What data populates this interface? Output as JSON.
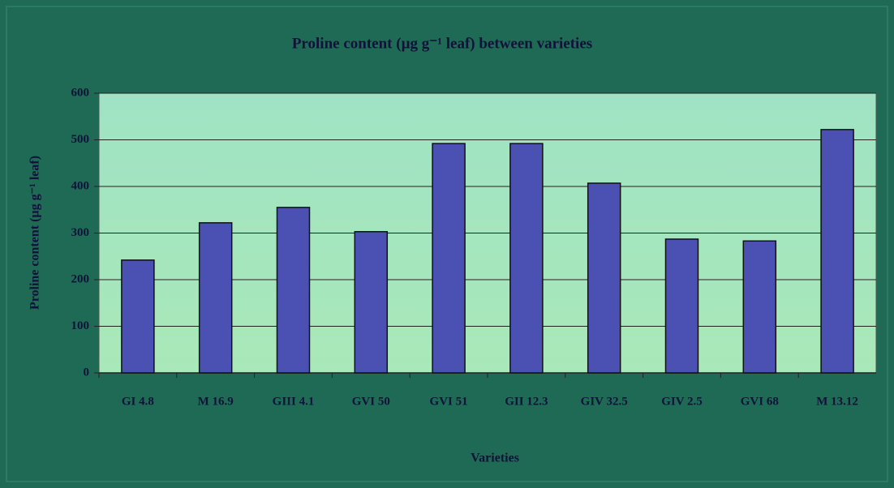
{
  "chart_data": {
    "type": "bar",
    "title": "Proline content (µg g⁻¹ leaf) between varieties",
    "x_label": "Varieties",
    "y_label": "Proline content (µg g⁻¹ leaf)",
    "categories": [
      "GI 4.8",
      "M 16.9",
      "GIII 4.1",
      "GVI 50",
      "GVI 51",
      "GII 12.3",
      "GIV 32.5",
      "GIV 2.5",
      "GVI 68",
      "M 13.12"
    ],
    "values": [
      242,
      322,
      355,
      303,
      492,
      492,
      407,
      287,
      283,
      522
    ],
    "color": "#4b50b3",
    "ylim": [
      0,
      600
    ],
    "yticks": [
      0,
      100,
      200,
      300,
      400,
      500,
      600
    ],
    "grid": true
  }
}
